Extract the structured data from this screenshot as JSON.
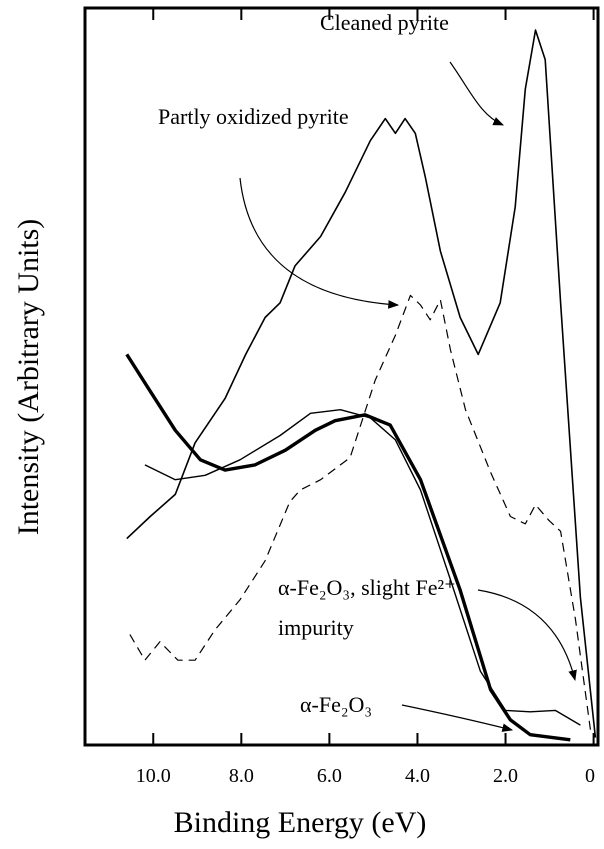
{
  "chart_data": {
    "type": "line",
    "xlabel": "Binding Energy (eV)",
    "ylabel": "Intensity (Arbitrary Units)",
    "xlim": [
      11.55,
      -0.1
    ],
    "ylim": [
      0,
      100
    ],
    "xticks": [
      {
        "value": 10,
        "label": "10.0"
      },
      {
        "value": 8,
        "label": "8.0"
      },
      {
        "value": 6,
        "label": "6.0"
      },
      {
        "value": 4,
        "label": "4.0"
      },
      {
        "value": 2,
        "label": "2.0"
      },
      0
    ],
    "grid": false,
    "series": [
      {
        "name": "Cleaned pyrite",
        "color": "#000000",
        "style": "solid",
        "linewidth": 1.6,
        "x": [
          10.6,
          10.07,
          9.5,
          9.05,
          8.37,
          7.9,
          7.46,
          7.12,
          6.78,
          6.2,
          5.64,
          5.07,
          4.73,
          4.5,
          4.28,
          4.05,
          3.82,
          3.48,
          3.03,
          2.62,
          2.12,
          1.78,
          1.55,
          1.32,
          1.1,
          0.75,
          0.3,
          -0.04
        ],
        "values": [
          28,
          31,
          34,
          41,
          47,
          53,
          58,
          60,
          65,
          69,
          75,
          82,
          85,
          83,
          85,
          83,
          77,
          67,
          58,
          53,
          60,
          73,
          89,
          97,
          93,
          60,
          20,
          1
        ]
      },
      {
        "name": "Partly oxidized pyrite",
        "color": "#000000",
        "style": "dashed",
        "linewidth": 1.2,
        "x": [
          10.53,
          10.19,
          9.85,
          9.44,
          9.05,
          8.6,
          8.03,
          7.46,
          6.9,
          6.66,
          6.2,
          5.53,
          4.96,
          4.5,
          4.16,
          3.93,
          3.71,
          3.48,
          3.25,
          2.91,
          2.34,
          1.89,
          1.55,
          1.32,
          1.02,
          0.75,
          0.41,
          0.07
        ],
        "values": [
          15,
          11.5,
          14,
          11.5,
          11.5,
          15.6,
          19.7,
          25,
          33,
          34.6,
          36,
          39,
          49.5,
          55.6,
          61,
          59.7,
          57.7,
          60.4,
          53.6,
          45.5,
          37,
          31,
          30,
          32.6,
          30.5,
          29,
          17,
          2
        ]
      },
      {
        "name": "α-Fe₂O₃, slight Fe²⁺ impurity",
        "color": "#000000",
        "style": "solid",
        "linewidth": 1.4,
        "x": [
          10.19,
          9.5,
          8.82,
          8.03,
          7.12,
          6.43,
          5.75,
          5.07,
          4.5,
          3.93,
          3.25,
          2.57,
          2.0,
          1.44,
          0.87,
          0.3
        ],
        "values": [
          38,
          36,
          36.6,
          38.7,
          42,
          45,
          45.5,
          44.4,
          41.4,
          34.6,
          22.4,
          10,
          4.7,
          4.5,
          4.7,
          2.7
        ]
      },
      {
        "name": "α-Fe₂O₃",
        "color": "#000000",
        "style": "solid",
        "linewidth": 3.4,
        "x": [
          10.6,
          10.07,
          9.5,
          8.93,
          8.37,
          7.69,
          7.0,
          6.32,
          5.87,
          5.19,
          4.62,
          3.93,
          3.03,
          2.34,
          1.89,
          1.44,
          0.53
        ],
        "values": [
          53,
          48,
          42.7,
          38.7,
          37.3,
          38,
          40,
          42.7,
          44,
          44.8,
          43.4,
          36,
          21,
          7.5,
          3.4,
          1.4,
          0.7
        ]
      }
    ]
  }
}
